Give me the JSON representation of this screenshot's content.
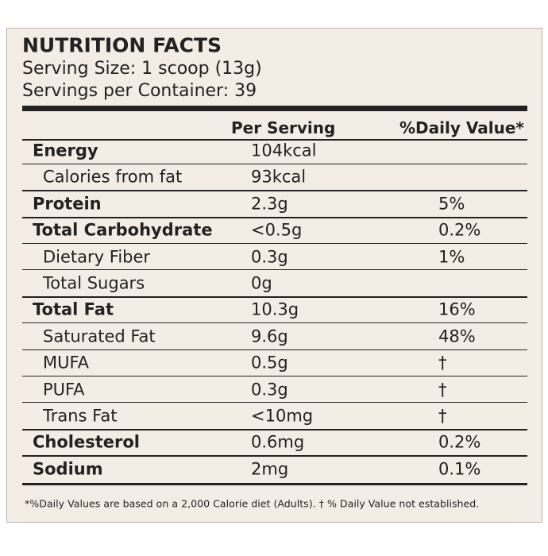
{
  "header": {
    "title": "NUTRITION FACTS",
    "serving_size": "Serving Size: 1 scoop (13g)",
    "servings": "Servings per Container: 39"
  },
  "table": {
    "columns": [
      "Per Serving",
      "%Daily Value*"
    ],
    "rows": [
      {
        "name": "Energy",
        "amount": "104kcal"
      },
      {
        "name": "Calories from fat",
        "amount": "93kcal",
        "indent": true
      },
      {
        "name": "Protein",
        "amount": "2.3g",
        "daily_value": "5%"
      },
      {
        "name": "Total Carbohydrate",
        "amount": "<0.5g",
        "daily_value": "0.2%"
      },
      {
        "name": "Dietary Fiber",
        "amount": "0.3g",
        "daily_value": "1%",
        "indent": true
      },
      {
        "name": "Total Sugars",
        "amount": "0g",
        "indent": true
      },
      {
        "name": "Total Fat",
        "amount": "10.3g",
        "daily_value": "16%"
      },
      {
        "name": "Saturated Fat",
        "amount": "9.6g",
        "daily_value": "48%",
        "indent": true
      },
      {
        "name": "MUFA",
        "amount": "0.5g",
        "daily_value": "†",
        "indent": true
      },
      {
        "name": "PUFA",
        "amount": "0.3g",
        "daily_value": "†",
        "indent": true
      },
      {
        "name": "Trans Fat",
        "amount": "<10mg",
        "daily_value": "†",
        "indent": true
      },
      {
        "name": "Cholesterol",
        "amount": "0.6mg",
        "daily_value": "0.2%"
      },
      {
        "name": "Sodium",
        "amount": "2mg",
        "daily_value": "0.1%"
      }
    ]
  },
  "footnote": "*%Daily Values are based on a 2,000 Calorie diet (Adults). † % Daily Value not established."
}
